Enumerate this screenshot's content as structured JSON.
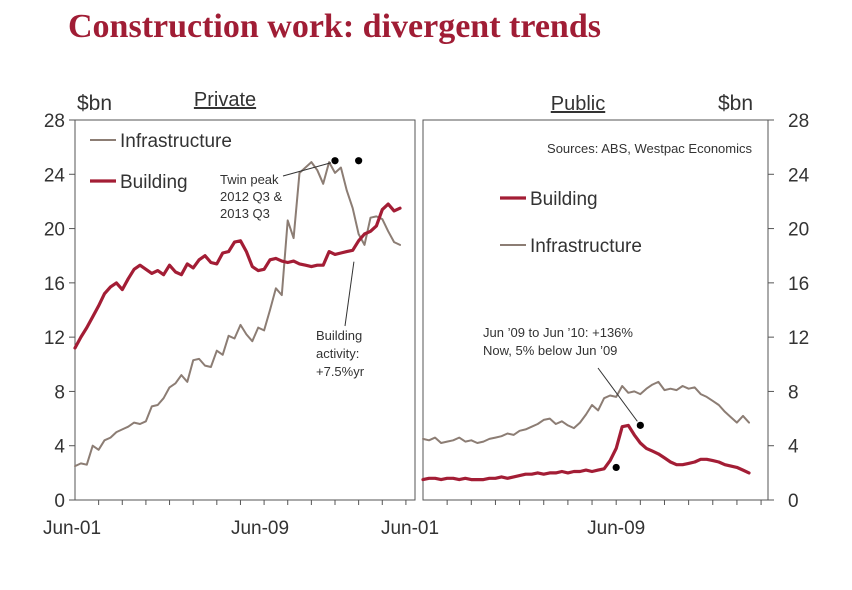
{
  "title": "Construction work: divergent trends",
  "colors": {
    "infrastructure": "#8c7d74",
    "building": "#a31d35",
    "title": "#a01d35",
    "axis": "#555555"
  },
  "chart_data": [
    {
      "type": "line",
      "panel_title": "Private",
      "ylabel": "$bn",
      "ylim": [
        0,
        28
      ],
      "yticks": [
        "0",
        "4",
        "8",
        "12",
        "16",
        "20",
        "24",
        "28"
      ],
      "xticks": [
        "Jun-01",
        "Jun-09",
        "Jun-01"
      ],
      "xlim": [
        2001.5,
        2015.5
      ],
      "legend": "top-left",
      "series": [
        {
          "name": "Infrastructure",
          "x": [
            2001.5,
            2001.75,
            2002,
            2002.25,
            2002.5,
            2002.75,
            2003,
            2003.25,
            2003.5,
            2003.75,
            2004,
            2004.25,
            2004.5,
            2004.75,
            2005,
            2005.25,
            2005.5,
            2005.75,
            2006,
            2006.25,
            2006.5,
            2006.75,
            2007,
            2007.25,
            2007.5,
            2007.75,
            2008,
            2008.25,
            2008.5,
            2008.75,
            2009,
            2009.25,
            2009.5,
            2009.75,
            2010,
            2010.25,
            2010.5,
            2010.75,
            2011,
            2011.25,
            2011.5,
            2011.75,
            2012,
            2012.25,
            2012.5,
            2012.75,
            2013,
            2013.25,
            2013.5,
            2013.75,
            2014,
            2014.25,
            2014.5,
            2014.75,
            2015,
            2015.25
          ],
          "values": [
            2.5,
            2.7,
            2.6,
            4.0,
            3.7,
            4.4,
            4.6,
            5.0,
            5.2,
            5.4,
            5.7,
            5.6,
            5.8,
            6.9,
            7.0,
            7.5,
            8.3,
            8.6,
            9.2,
            8.7,
            10.3,
            10.4,
            9.9,
            9.8,
            11.0,
            10.7,
            12.1,
            11.9,
            12.9,
            12.2,
            11.7,
            12.7,
            12.5,
            14.0,
            15.6,
            15.1,
            20.6,
            19.3,
            24.1,
            24.5,
            24.9,
            24.3,
            23.3,
            24.9,
            24.1,
            24.5,
            22.8,
            21.5,
            19.6,
            18.8,
            20.8,
            20.9,
            20.7,
            19.8,
            19.0,
            18.8
          ]
        },
        {
          "name": "Building",
          "x": [
            2001.5,
            2001.75,
            2002,
            2002.25,
            2002.5,
            2002.75,
            2003,
            2003.25,
            2003.5,
            2003.75,
            2004,
            2004.25,
            2004.5,
            2004.75,
            2005,
            2005.25,
            2005.5,
            2005.75,
            2006,
            2006.25,
            2006.5,
            2006.75,
            2007,
            2007.25,
            2007.5,
            2007.75,
            2008,
            2008.25,
            2008.5,
            2008.75,
            2009,
            2009.25,
            2009.5,
            2009.75,
            2010,
            2010.25,
            2010.5,
            2010.75,
            2011,
            2011.25,
            2011.5,
            2011.75,
            2012,
            2012.25,
            2012.5,
            2012.75,
            2013,
            2013.25,
            2013.5,
            2013.75,
            2014,
            2014.25,
            2014.5,
            2014.75,
            2015,
            2015.25
          ],
          "values": [
            11.2,
            12.0,
            12.7,
            13.5,
            14.3,
            15.2,
            15.7,
            16.0,
            15.5,
            16.3,
            17.0,
            17.3,
            17.0,
            16.7,
            16.9,
            16.6,
            17.3,
            16.8,
            16.6,
            17.4,
            17.1,
            17.7,
            18.0,
            17.5,
            17.4,
            18.2,
            18.3,
            19.0,
            19.1,
            18.3,
            17.2,
            16.9,
            17.0,
            17.7,
            17.8,
            17.6,
            17.5,
            17.6,
            17.4,
            17.3,
            17.2,
            17.3,
            17.3,
            18.3,
            18.1,
            18.2,
            18.3,
            18.4,
            19.1,
            19.6,
            19.8,
            20.2,
            21.4,
            21.8,
            21.3,
            21.5
          ]
        }
      ],
      "annotations": [
        {
          "text": [
            "Twin peak",
            "2012 Q3 &",
            "2013 Q3"
          ],
          "points": [
            [
              2012.5,
              25.0
            ],
            [
              2013.5,
              25.0
            ]
          ]
        },
        {
          "text": [
            "Building",
            "activity:",
            "+7.5%yr"
          ],
          "point": [
            2013.3,
            18.0
          ]
        }
      ]
    },
    {
      "type": "line",
      "panel_title": "Public",
      "ylabel": "$bn",
      "ylim": [
        0,
        28
      ],
      "yticks": [
        "0",
        "4",
        "8",
        "12",
        "16",
        "20",
        "24",
        "28"
      ],
      "xticks": [
        "Jun-09"
      ],
      "xlim": [
        2001.5,
        2015.5
      ],
      "legend": "top-center",
      "source": "Sources: ABS, Westpac Economics",
      "series": [
        {
          "name": "Building",
          "x": [
            2001.5,
            2001.75,
            2002,
            2002.25,
            2002.5,
            2002.75,
            2003,
            2003.25,
            2003.5,
            2003.75,
            2004,
            2004.25,
            2004.5,
            2004.75,
            2005,
            2005.25,
            2005.5,
            2005.75,
            2006,
            2006.25,
            2006.5,
            2006.75,
            2007,
            2007.25,
            2007.5,
            2007.75,
            2008,
            2008.25,
            2008.5,
            2008.75,
            2009,
            2009.25,
            2009.5,
            2009.75,
            2010,
            2010.25,
            2010.5,
            2010.75,
            2011,
            2011.25,
            2011.5,
            2011.75,
            2012,
            2012.25,
            2012.5,
            2012.75,
            2013,
            2013.25,
            2013.5,
            2013.75,
            2014,
            2014.25,
            2014.5,
            2014.75,
            2015
          ],
          "values": [
            1.5,
            1.6,
            1.6,
            1.5,
            1.6,
            1.6,
            1.5,
            1.6,
            1.5,
            1.5,
            1.5,
            1.6,
            1.6,
            1.7,
            1.6,
            1.7,
            1.8,
            1.9,
            1.9,
            2.0,
            1.9,
            2.0,
            2.0,
            2.1,
            2.0,
            2.1,
            2.1,
            2.2,
            2.1,
            2.2,
            2.3,
            2.9,
            3.8,
            5.4,
            5.5,
            4.8,
            4.2,
            3.8,
            3.6,
            3.4,
            3.1,
            2.8,
            2.6,
            2.6,
            2.7,
            2.8,
            3.0,
            3.0,
            2.9,
            2.8,
            2.6,
            2.5,
            2.4,
            2.2,
            2.0
          ]
        },
        {
          "name": "Infrastructure",
          "x": [
            2001.5,
            2001.75,
            2002,
            2002.25,
            2002.5,
            2002.75,
            2003,
            2003.25,
            2003.5,
            2003.75,
            2004,
            2004.25,
            2004.5,
            2004.75,
            2005,
            2005.25,
            2005.5,
            2005.75,
            2006,
            2006.25,
            2006.5,
            2006.75,
            2007,
            2007.25,
            2007.5,
            2007.75,
            2008,
            2008.25,
            2008.5,
            2008.75,
            2009,
            2009.25,
            2009.5,
            2009.75,
            2010,
            2010.25,
            2010.5,
            2010.75,
            2011,
            2011.25,
            2011.5,
            2011.75,
            2012,
            2012.25,
            2012.5,
            2012.75,
            2013,
            2013.25,
            2013.5,
            2013.75,
            2014,
            2014.25,
            2014.5,
            2014.75,
            2015
          ],
          "values": [
            4.5,
            4.4,
            4.6,
            4.2,
            4.3,
            4.4,
            4.6,
            4.3,
            4.4,
            4.2,
            4.3,
            4.5,
            4.6,
            4.7,
            4.9,
            4.8,
            5.1,
            5.2,
            5.4,
            5.6,
            5.9,
            6.0,
            5.6,
            5.8,
            5.5,
            5.3,
            5.7,
            6.3,
            7.0,
            6.6,
            7.5,
            7.7,
            7.6,
            8.4,
            7.9,
            8.0,
            7.8,
            8.2,
            8.5,
            8.7,
            8.1,
            8.2,
            8.1,
            8.4,
            8.2,
            8.3,
            7.8,
            7.6,
            7.3,
            7.0,
            6.5,
            6.1,
            5.7,
            6.2,
            5.7
          ]
        }
      ],
      "annotations": [
        {
          "text": [
            "Jun ’09 to Jun ’10: +136%",
            "Now, 5% below Jun ’09"
          ],
          "points": [
            [
              2009.5,
              2.4
            ],
            [
              2010.5,
              5.5
            ]
          ]
        }
      ]
    }
  ]
}
